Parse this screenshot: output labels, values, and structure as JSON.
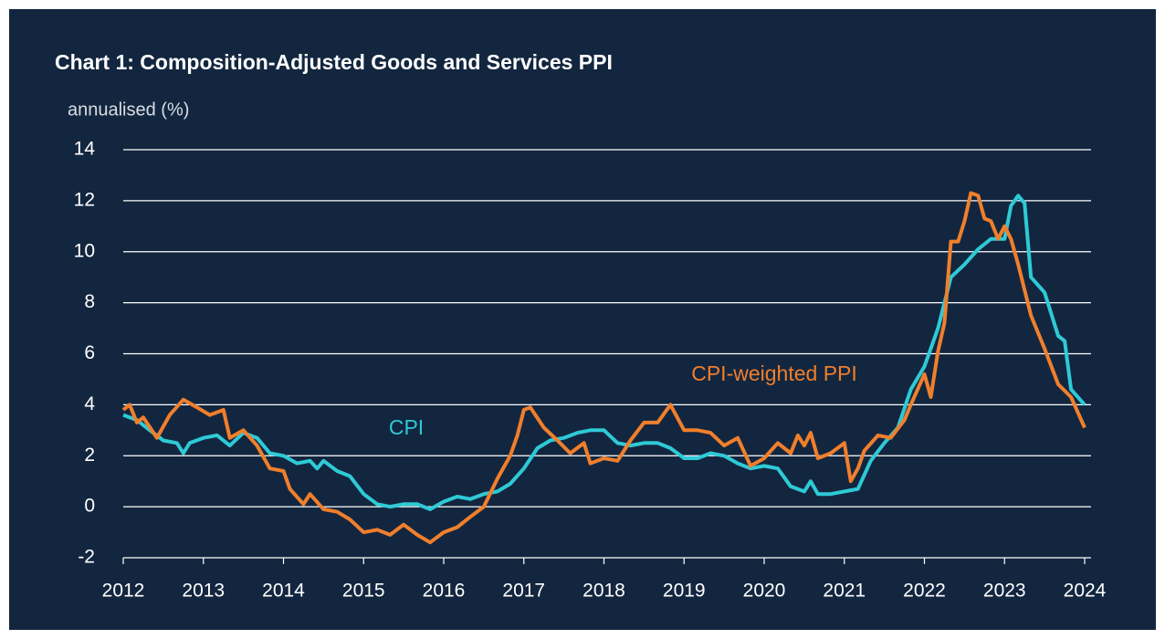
{
  "chart_data": {
    "type": "line",
    "title": "Chart 1: Composition-Adjusted Goods and Services PPI",
    "y_label": "annualised (%)",
    "xlim": [
      2012,
      2024
    ],
    "xticks": [
      2012,
      2013,
      2014,
      2015,
      2016,
      2017,
      2018,
      2019,
      2020,
      2021,
      2022,
      2023,
      2024
    ],
    "ylim": [
      -2,
      14
    ],
    "yticks": [
      -2,
      0,
      2,
      4,
      6,
      8,
      10,
      12,
      14
    ],
    "grid": true,
    "series": [
      {
        "name": "CPI",
        "color": "#2ecad6",
        "x": [
          2012.0,
          2012.17,
          2012.33,
          2012.5,
          2012.67,
          2012.75,
          2012.83,
          2013.0,
          2013.17,
          2013.33,
          2013.5,
          2013.67,
          2013.83,
          2014.0,
          2014.17,
          2014.33,
          2014.42,
          2014.5,
          2014.67,
          2014.83,
          2015.0,
          2015.17,
          2015.33,
          2015.5,
          2015.67,
          2015.83,
          2016.0,
          2016.17,
          2016.33,
          2016.5,
          2016.67,
          2016.83,
          2017.0,
          2017.17,
          2017.33,
          2017.5,
          2017.67,
          2017.83,
          2018.0,
          2018.17,
          2018.33,
          2018.5,
          2018.67,
          2018.83,
          2019.0,
          2019.17,
          2019.33,
          2019.5,
          2019.67,
          2019.83,
          2020.0,
          2020.17,
          2020.33,
          2020.5,
          2020.58,
          2020.67,
          2020.83,
          2021.0,
          2021.17,
          2021.33,
          2021.5,
          2021.67,
          2021.83,
          2022.0,
          2022.17,
          2022.33,
          2022.5,
          2022.67,
          2022.83,
          2023.0,
          2023.08,
          2023.17,
          2023.25,
          2023.33,
          2023.5,
          2023.67,
          2023.75,
          2023.83,
          2024.0
        ],
        "values": [
          3.6,
          3.4,
          3.0,
          2.6,
          2.5,
          2.1,
          2.5,
          2.7,
          2.8,
          2.4,
          2.9,
          2.7,
          2.1,
          2.0,
          1.7,
          1.8,
          1.5,
          1.8,
          1.4,
          1.2,
          0.5,
          0.1,
          0.0,
          0.1,
          0.1,
          -0.1,
          0.2,
          0.4,
          0.3,
          0.5,
          0.6,
          0.9,
          1.5,
          2.3,
          2.6,
          2.7,
          2.9,
          3.0,
          3.0,
          2.5,
          2.4,
          2.5,
          2.5,
          2.3,
          1.9,
          1.9,
          2.1,
          2.0,
          1.7,
          1.5,
          1.6,
          1.5,
          0.8,
          0.6,
          1.0,
          0.5,
          0.5,
          0.6,
          0.7,
          1.8,
          2.5,
          3.1,
          4.6,
          5.5,
          7.0,
          9.0,
          9.5,
          10.1,
          10.5,
          10.5,
          11.8,
          12.2,
          11.9,
          9.0,
          8.4,
          6.7,
          6.5,
          4.6,
          4.0
        ]
      },
      {
        "name": "CPI-weighted PPI",
        "color": "#f07f2c",
        "x": [
          2012.0,
          2012.08,
          2012.17,
          2012.25,
          2012.42,
          2012.58,
          2012.75,
          2012.92,
          2013.08,
          2013.25,
          2013.33,
          2013.5,
          2013.67,
          2013.83,
          2014.0,
          2014.08,
          2014.25,
          2014.33,
          2014.5,
          2014.67,
          2014.83,
          2015.0,
          2015.17,
          2015.33,
          2015.5,
          2015.67,
          2015.83,
          2016.0,
          2016.17,
          2016.33,
          2016.5,
          2016.67,
          2016.83,
          2016.92,
          2017.0,
          2017.08,
          2017.25,
          2017.42,
          2017.58,
          2017.75,
          2017.83,
          2018.0,
          2018.17,
          2018.33,
          2018.5,
          2018.67,
          2018.83,
          2019.0,
          2019.17,
          2019.33,
          2019.5,
          2019.67,
          2019.83,
          2020.0,
          2020.17,
          2020.33,
          2020.42,
          2020.5,
          2020.58,
          2020.67,
          2020.83,
          2021.0,
          2021.08,
          2021.17,
          2021.25,
          2021.42,
          2021.58,
          2021.75,
          2021.83,
          2022.0,
          2022.08,
          2022.17,
          2022.25,
          2022.33,
          2022.42,
          2022.5,
          2022.58,
          2022.67,
          2022.75,
          2022.83,
          2022.92,
          2023.0,
          2023.08,
          2023.17,
          2023.33,
          2023.5,
          2023.67,
          2023.83,
          2024.0
        ],
        "values": [
          3.8,
          4.0,
          3.3,
          3.5,
          2.7,
          3.6,
          4.2,
          3.9,
          3.6,
          3.8,
          2.7,
          3.0,
          2.4,
          1.5,
          1.4,
          0.7,
          0.1,
          0.5,
          -0.1,
          -0.2,
          -0.5,
          -1.0,
          -0.9,
          -1.1,
          -0.7,
          -1.1,
          -1.4,
          -1.0,
          -0.8,
          -0.4,
          0.0,
          1.1,
          2.0,
          2.8,
          3.8,
          3.9,
          3.1,
          2.6,
          2.1,
          2.5,
          1.7,
          1.9,
          1.8,
          2.6,
          3.3,
          3.3,
          4.0,
          3.0,
          3.0,
          2.9,
          2.4,
          2.7,
          1.6,
          1.9,
          2.5,
          2.1,
          2.8,
          2.4,
          2.9,
          1.9,
          2.1,
          2.5,
          1.0,
          1.5,
          2.2,
          2.8,
          2.7,
          3.4,
          4.0,
          5.2,
          4.3,
          6.1,
          7.2,
          10.4,
          10.4,
          11.2,
          12.3,
          12.2,
          11.3,
          11.2,
          10.5,
          11.0,
          10.5,
          9.5,
          7.5,
          6.2,
          4.8,
          4.3,
          3.1
        ]
      }
    ]
  }
}
